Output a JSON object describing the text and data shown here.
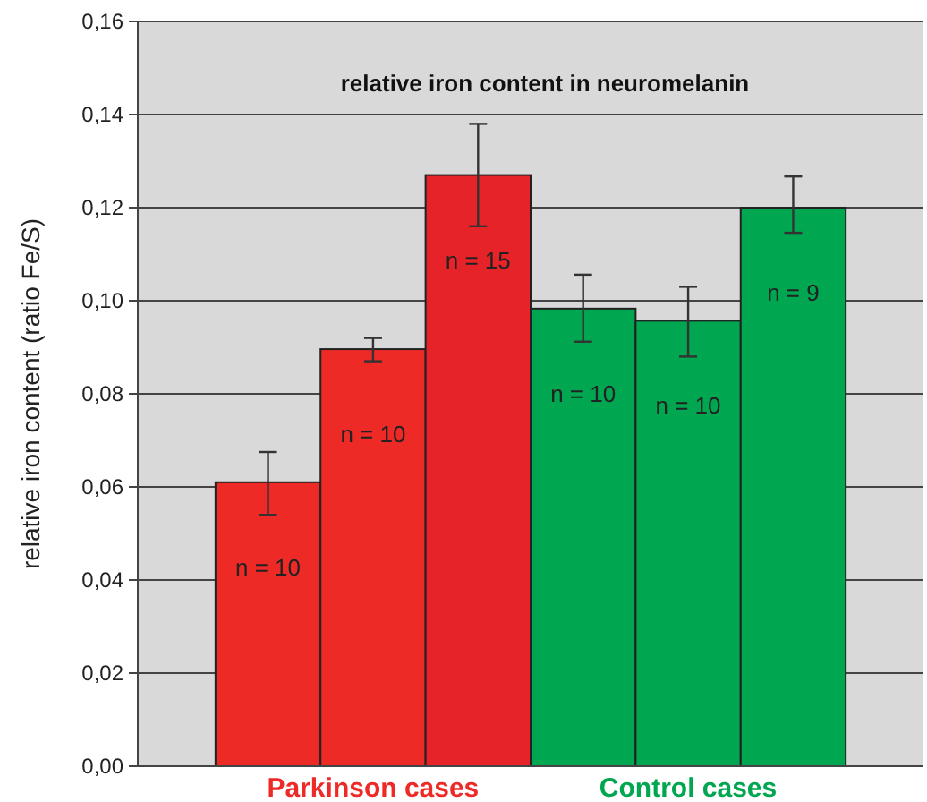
{
  "chart_data": {
    "type": "bar",
    "title": "relative iron content in neuromelanin",
    "ylabel": "relative iron content (ratio Fe/S)",
    "categories": [
      null,
      null,
      null,
      null,
      null,
      null
    ],
    "values": [
      0.061,
      0.0896,
      0.127,
      0.0983,
      0.0957,
      0.12
    ],
    "errors": [
      [
        0.054,
        0.0675
      ],
      [
        0.087,
        0.092
      ],
      [
        0.116,
        0.138
      ],
      [
        0.0912,
        0.1056
      ],
      [
        0.088,
        0.103
      ],
      [
        0.1146,
        0.1267
      ]
    ],
    "colors": [
      "#ee2a27",
      "#ee2a27",
      "#e52329",
      "#00a650",
      "#00a650",
      "#00a650"
    ],
    "ylim": [
      0,
      0.16
    ],
    "yticks": [
      {
        "value": 0,
        "label": "0,00"
      },
      {
        "value": 0.02,
        "label": "0,02"
      },
      {
        "value": 0.04,
        "label": "0,04"
      },
      {
        "value": 0.06,
        "label": "0,06"
      },
      {
        "value": 0.08,
        "label": "0,08"
      },
      {
        "value": 0.1,
        "label": "0,10"
      },
      {
        "value": 0.12,
        "label": "0,12"
      },
      {
        "value": 0.14,
        "label": "0,14"
      },
      {
        "value": 0.16,
        "label": "0,16"
      }
    ],
    "grid": "y",
    "annotations": [
      "n = 10",
      "n = 10",
      "n = 15",
      "n = 10",
      "n = 10",
      "n = 9",
      "Parkinson cases",
      "Control cases"
    ]
  }
}
